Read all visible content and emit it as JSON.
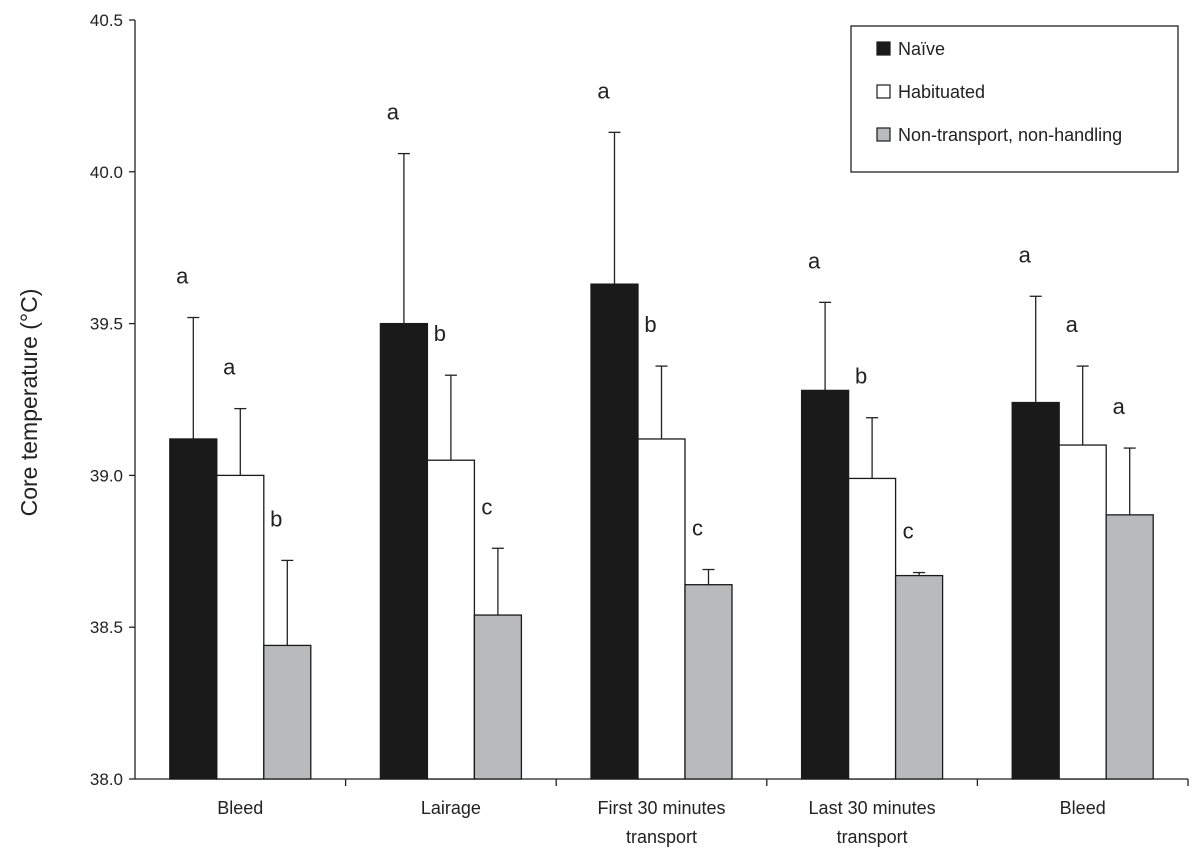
{
  "chart_data": {
    "type": "bar",
    "title": "",
    "xlabel": "",
    "ylabel": "Core temperature (°C)",
    "ylim": [
      38.0,
      40.5
    ],
    "yticks": [
      "38.0",
      "38.5",
      "39.0",
      "39.5",
      "40.0",
      "40.5"
    ],
    "grid": false,
    "legend_position": "top-right",
    "categories": [
      [
        "Bleed"
      ],
      [
        "Lairage"
      ],
      [
        "First 30 minutes",
        "transport"
      ],
      [
        "Last 30 minutes",
        "transport"
      ],
      [
        "Bleed"
      ]
    ],
    "series": [
      {
        "name": "Naïve",
        "color": "#1a1a1a",
        "values": [
          39.12,
          39.5,
          39.63,
          39.28,
          39.24
        ],
        "error": [
          0.4,
          0.56,
          0.5,
          0.29,
          0.35
        ],
        "sig": [
          "a",
          "a",
          "a",
          "a",
          "a"
        ]
      },
      {
        "name": "Habituated",
        "color": "#ffffff",
        "values": [
          39.0,
          39.05,
          39.12,
          38.99,
          39.1
        ],
        "error": [
          0.22,
          0.28,
          0.24,
          0.2,
          0.26
        ],
        "sig": [
          "a",
          "b",
          "b",
          "b",
          "a"
        ]
      },
      {
        "name": "Non-transport, non-handling",
        "color": "#b9babc",
        "values": [
          38.44,
          38.54,
          38.64,
          38.67,
          38.87
        ],
        "error": [
          0.28,
          0.22,
          0.05,
          0.01,
          0.22
        ],
        "sig": [
          "b",
          "c",
          "c",
          "c",
          "a"
        ]
      }
    ]
  }
}
